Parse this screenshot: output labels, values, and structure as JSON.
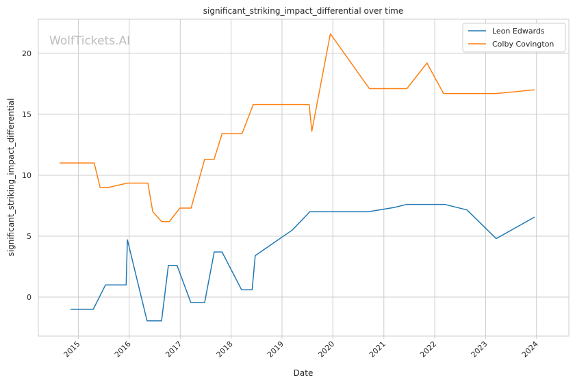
{
  "chart_data": {
    "type": "line",
    "title": "significant_striking_impact_differential over time",
    "xlabel": "Date",
    "ylabel": "significant_striking_impact_differential",
    "watermark": "WolfTickets.AI",
    "xlim": [
      "2014-03-20",
      "2024-08-20"
    ],
    "ylim": [
      -3.2,
      22.8
    ],
    "x_ticks": [
      "2015-01-01",
      "2016-01-01",
      "2017-01-01",
      "2018-01-01",
      "2019-01-01",
      "2020-01-01",
      "2021-01-01",
      "2022-01-01",
      "2023-01-01",
      "2024-01-01"
    ],
    "x_tick_labels": [
      "2015",
      "2016",
      "2017",
      "2018",
      "2019",
      "2020",
      "2021",
      "2022",
      "2023",
      "2024"
    ],
    "y_ticks": [
      0,
      5,
      10,
      15,
      20
    ],
    "y_tick_labels": [
      "0",
      "5",
      "10",
      "15",
      "20"
    ],
    "grid": true,
    "legend_position": "top-right",
    "series": [
      {
        "name": "Leon Edwards",
        "color": "#1f77b4",
        "points": [
          [
            "2014-11-08",
            -1.0
          ],
          [
            "2015-04-18",
            -1.0
          ],
          [
            "2015-07-15",
            1.0
          ],
          [
            "2015-12-10",
            1.0
          ],
          [
            "2015-12-19",
            4.7
          ],
          [
            "2016-05-08",
            -1.95
          ],
          [
            "2016-08-20",
            -1.95
          ],
          [
            "2016-10-08",
            2.6
          ],
          [
            "2016-12-09",
            2.6
          ],
          [
            "2017-03-18",
            -0.45
          ],
          [
            "2017-06-25",
            -0.45
          ],
          [
            "2017-09-02",
            3.7
          ],
          [
            "2017-10-28",
            3.7
          ],
          [
            "2018-03-17",
            0.6
          ],
          [
            "2018-06-01",
            0.6
          ],
          [
            "2018-06-23",
            3.4
          ],
          [
            "2019-03-16",
            5.5
          ],
          [
            "2019-07-20",
            7.0
          ],
          [
            "2020-09-10",
            7.0
          ],
          [
            "2021-03-15",
            7.35
          ],
          [
            "2021-06-12",
            7.6
          ],
          [
            "2022-03-15",
            7.6
          ],
          [
            "2022-08-20",
            7.15
          ],
          [
            "2023-03-18",
            4.8
          ],
          [
            "2023-12-16",
            6.55
          ]
        ]
      },
      {
        "name": "Colby Covington",
        "color": "#ff7f0e",
        "points": [
          [
            "2014-08-23",
            11.0
          ],
          [
            "2015-04-25",
            11.0
          ],
          [
            "2015-06-06",
            9.0
          ],
          [
            "2015-08-08",
            9.0
          ],
          [
            "2015-12-19",
            9.35
          ],
          [
            "2016-05-14",
            9.35
          ],
          [
            "2016-06-18",
            7.0
          ],
          [
            "2016-08-20",
            6.2
          ],
          [
            "2016-10-15",
            6.2
          ],
          [
            "2016-12-30",
            7.3
          ],
          [
            "2017-03-20",
            7.3
          ],
          [
            "2017-06-25",
            11.3
          ],
          [
            "2017-09-01",
            11.3
          ],
          [
            "2017-10-28",
            13.4
          ],
          [
            "2018-03-20",
            13.4
          ],
          [
            "2018-06-09",
            15.8
          ],
          [
            "2019-07-15",
            15.8
          ],
          [
            "2019-08-03",
            13.6
          ],
          [
            "2019-12-14",
            21.6
          ],
          [
            "2020-09-19",
            17.1
          ],
          [
            "2021-06-15",
            17.1
          ],
          [
            "2021-11-06",
            19.2
          ],
          [
            "2022-03-05",
            16.7
          ],
          [
            "2023-03-15",
            16.7
          ],
          [
            "2023-12-16",
            17.0
          ]
        ]
      }
    ]
  }
}
